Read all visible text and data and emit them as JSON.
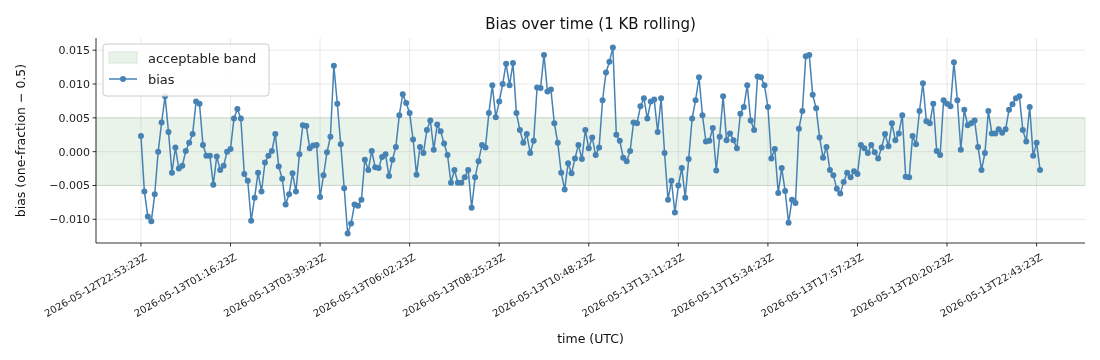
{
  "chart_data": {
    "type": "line",
    "title": "Bias over time (1 KB rolling)",
    "xlabel": "time (UTC)",
    "ylabel": "bias (one-fraction − 0.5)",
    "xlim": [
      "2026-05-12T21:41:37",
      "2026-05-14T00:00:39"
    ],
    "ylim": [
      -0.0135,
      0.0168
    ],
    "xticks": [
      {
        "value": "2026-05-12T22:53:23",
        "label": "2026-05-12T22:53:23Z"
      },
      {
        "value": "2026-05-13T01:16:23",
        "label": "2026-05-13T01:16:23Z"
      },
      {
        "value": "2026-05-13T03:39:23",
        "label": "2026-05-13T03:39:23Z"
      },
      {
        "value": "2026-05-13T06:02:23",
        "label": "2026-05-13T06:02:23Z"
      },
      {
        "value": "2026-05-13T08:25:23",
        "label": "2026-05-13T08:25:23Z"
      },
      {
        "value": "2026-05-13T10:48:23",
        "label": "2026-05-13T10:48:23Z"
      },
      {
        "value": "2026-05-13T13:11:23",
        "label": "2026-05-13T13:11:23Z"
      },
      {
        "value": "2026-05-13T15:34:23",
        "label": "2026-05-13T15:34:23Z"
      },
      {
        "value": "2026-05-13T17:57:23",
        "label": "2026-05-13T17:57:23Z"
      },
      {
        "value": "2026-05-13T20:20:23",
        "label": "2026-05-13T20:20:23Z"
      },
      {
        "value": "2026-05-13T22:43:23",
        "label": "2026-05-13T22:43:23Z"
      }
    ],
    "yticks": [
      {
        "value": -0.01,
        "label": "−0.010"
      },
      {
        "value": -0.005,
        "label": "−0.005"
      },
      {
        "value": 0,
        "label": "0.000"
      },
      {
        "value": 0.005,
        "label": "0.005"
      },
      {
        "value": 0.01,
        "label": "0.010"
      },
      {
        "value": 0.015,
        "label": "0.015"
      }
    ],
    "grid": true,
    "legend": "top left",
    "marker": "circle",
    "bands": [
      {
        "axis": "y",
        "from": -0.005,
        "to": 0.005,
        "label": "acceptable band",
        "color": "#e9f3e9"
      }
    ],
    "series": [
      {
        "name": "bias",
        "color": "#4682b4",
        "x": [
          "2026-05-12T22:53:23",
          "2026-05-12T22:58:53",
          "2026-05-12T23:04:23",
          "2026-05-12T23:09:53",
          "2026-05-12T23:15:23",
          "2026-05-12T23:20:53",
          "2026-05-12T23:26:23",
          "2026-05-12T23:31:53",
          "2026-05-12T23:37:23",
          "2026-05-12T23:42:53",
          "2026-05-12T23:48:23",
          "2026-05-12T23:53:53",
          "2026-05-12T23:59:23",
          "2026-05-13T00:04:53",
          "2026-05-13T00:10:23",
          "2026-05-13T00:15:53",
          "2026-05-13T00:21:23",
          "2026-05-13T00:26:53",
          "2026-05-13T00:32:23",
          "2026-05-13T00:37:53",
          "2026-05-13T00:43:23",
          "2026-05-13T00:48:53",
          "2026-05-13T00:54:23",
          "2026-05-13T00:59:53",
          "2026-05-13T01:05:23",
          "2026-05-13T01:10:53",
          "2026-05-13T01:16:23",
          "2026-05-13T01:21:53",
          "2026-05-13T01:27:23",
          "2026-05-13T01:32:53",
          "2026-05-13T01:38:23",
          "2026-05-13T01:43:53",
          "2026-05-13T01:49:23",
          "2026-05-13T01:54:53",
          "2026-05-13T02:00:23",
          "2026-05-13T02:05:53",
          "2026-05-13T02:11:23",
          "2026-05-13T02:16:53",
          "2026-05-13T02:22:23",
          "2026-05-13T02:27:53",
          "2026-05-13T02:33:23",
          "2026-05-13T02:38:53",
          "2026-05-13T02:44:23",
          "2026-05-13T02:49:53",
          "2026-05-13T02:55:23",
          "2026-05-13T03:00:53",
          "2026-05-13T03:06:23",
          "2026-05-13T03:11:53",
          "2026-05-13T03:17:23",
          "2026-05-13T03:22:53",
          "2026-05-13T03:28:23",
          "2026-05-13T03:33:53",
          "2026-05-13T03:39:23",
          "2026-05-13T03:44:53",
          "2026-05-13T03:50:23",
          "2026-05-13T03:55:53",
          "2026-05-13T04:01:23",
          "2026-05-13T04:06:53",
          "2026-05-13T04:12:23",
          "2026-05-13T04:17:53",
          "2026-05-13T04:23:23",
          "2026-05-13T04:28:53",
          "2026-05-13T04:34:23",
          "2026-05-13T04:39:53",
          "2026-05-13T04:45:23",
          "2026-05-13T04:50:53",
          "2026-05-13T04:56:23",
          "2026-05-13T05:01:53",
          "2026-05-13T05:07:23",
          "2026-05-13T05:12:53",
          "2026-05-13T05:18:23",
          "2026-05-13T05:23:53",
          "2026-05-13T05:29:23",
          "2026-05-13T05:34:53",
          "2026-05-13T05:40:23",
          "2026-05-13T05:45:53",
          "2026-05-13T05:51:23",
          "2026-05-13T05:56:53",
          "2026-05-13T06:02:23",
          "2026-05-13T06:07:53",
          "2026-05-13T06:13:23",
          "2026-05-13T06:18:53",
          "2026-05-13T06:24:23",
          "2026-05-13T06:29:53",
          "2026-05-13T06:35:23",
          "2026-05-13T06:40:53",
          "2026-05-13T06:46:23",
          "2026-05-13T06:51:53",
          "2026-05-13T06:57:23",
          "2026-05-13T07:02:53",
          "2026-05-13T07:08:23",
          "2026-05-13T07:13:53",
          "2026-05-13T07:19:23",
          "2026-05-13T07:24:53",
          "2026-05-13T07:30:23",
          "2026-05-13T07:35:53",
          "2026-05-13T07:41:23",
          "2026-05-13T07:46:53",
          "2026-05-13T07:52:23",
          "2026-05-13T07:57:53",
          "2026-05-13T08:03:23",
          "2026-05-13T08:08:53",
          "2026-05-13T08:14:23",
          "2026-05-13T08:19:53",
          "2026-05-13T08:25:23",
          "2026-05-13T08:30:53",
          "2026-05-13T08:36:23",
          "2026-05-13T08:41:53",
          "2026-05-13T08:47:23",
          "2026-05-13T08:52:53",
          "2026-05-13T08:58:23",
          "2026-05-13T09:03:53",
          "2026-05-13T09:09:23",
          "2026-05-13T09:14:53",
          "2026-05-13T09:20:23",
          "2026-05-13T09:25:53",
          "2026-05-13T09:31:23",
          "2026-05-13T09:36:53",
          "2026-05-13T09:42:23",
          "2026-05-13T09:47:53",
          "2026-05-13T09:53:23",
          "2026-05-13T09:58:53",
          "2026-05-13T10:04:23",
          "2026-05-13T10:09:53",
          "2026-05-13T10:15:23",
          "2026-05-13T10:20:53",
          "2026-05-13T10:26:23",
          "2026-05-13T10:31:53",
          "2026-05-13T10:37:23",
          "2026-05-13T10:42:53",
          "2026-05-13T10:48:23",
          "2026-05-13T10:53:53",
          "2026-05-13T10:59:23",
          "2026-05-13T11:04:53",
          "2026-05-13T11:10:23",
          "2026-05-13T11:15:53",
          "2026-05-13T11:21:23",
          "2026-05-13T11:26:53",
          "2026-05-13T11:32:23",
          "2026-05-13T11:37:53",
          "2026-05-13T11:43:23",
          "2026-05-13T11:48:53",
          "2026-05-13T11:54:23",
          "2026-05-13T11:59:53",
          "2026-05-13T12:05:23",
          "2026-05-13T12:10:53",
          "2026-05-13T12:16:23",
          "2026-05-13T12:21:53",
          "2026-05-13T12:27:23",
          "2026-05-13T12:32:53",
          "2026-05-13T12:38:23",
          "2026-05-13T12:43:53",
          "2026-05-13T12:49:23",
          "2026-05-13T12:54:53",
          "2026-05-13T13:00:23",
          "2026-05-13T13:05:53",
          "2026-05-13T13:11:23",
          "2026-05-13T13:16:53",
          "2026-05-13T13:22:23",
          "2026-05-13T13:27:53",
          "2026-05-13T13:33:23",
          "2026-05-13T13:38:53",
          "2026-05-13T13:44:23",
          "2026-05-13T13:49:53",
          "2026-05-13T13:55:23",
          "2026-05-13T14:00:53",
          "2026-05-13T14:06:23",
          "2026-05-13T14:11:53",
          "2026-05-13T14:17:23",
          "2026-05-13T14:22:53",
          "2026-05-13T14:28:23",
          "2026-05-13T14:33:53",
          "2026-05-13T14:39:23",
          "2026-05-13T14:44:53",
          "2026-05-13T14:50:23",
          "2026-05-13T14:55:53",
          "2026-05-13T15:01:23",
          "2026-05-13T15:06:53",
          "2026-05-13T15:12:23",
          "2026-05-13T15:17:53",
          "2026-05-13T15:23:23",
          "2026-05-13T15:28:53",
          "2026-05-13T15:34:23",
          "2026-05-13T15:39:53",
          "2026-05-13T15:45:23",
          "2026-05-13T15:50:53",
          "2026-05-13T15:56:23",
          "2026-05-13T16:01:53",
          "2026-05-13T16:07:23",
          "2026-05-13T16:12:53",
          "2026-05-13T16:18:23",
          "2026-05-13T16:23:53",
          "2026-05-13T16:29:23",
          "2026-05-13T16:34:53",
          "2026-05-13T16:40:23",
          "2026-05-13T16:45:53",
          "2026-05-13T16:51:23",
          "2026-05-13T16:56:53",
          "2026-05-13T17:02:23",
          "2026-05-13T17:07:53",
          "2026-05-13T17:13:23",
          "2026-05-13T17:18:53",
          "2026-05-13T17:24:23",
          "2026-05-13T17:29:53",
          "2026-05-13T17:35:23",
          "2026-05-13T17:40:53",
          "2026-05-13T17:46:23",
          "2026-05-13T17:51:53",
          "2026-05-13T17:57:23",
          "2026-05-13T18:02:53",
          "2026-05-13T18:08:23",
          "2026-05-13T18:13:53",
          "2026-05-13T18:19:23",
          "2026-05-13T18:24:53",
          "2026-05-13T18:30:23",
          "2026-05-13T18:35:53",
          "2026-05-13T18:41:23",
          "2026-05-13T18:46:53",
          "2026-05-13T18:52:23",
          "2026-05-13T18:57:53",
          "2026-05-13T19:03:23",
          "2026-05-13T19:08:53",
          "2026-05-13T19:14:23",
          "2026-05-13T19:19:53",
          "2026-05-13T19:25:23",
          "2026-05-13T19:30:53",
          "2026-05-13T19:36:23",
          "2026-05-13T19:41:53",
          "2026-05-13T19:47:23",
          "2026-05-13T19:52:53",
          "2026-05-13T19:58:23",
          "2026-05-13T20:03:53",
          "2026-05-13T20:09:23",
          "2026-05-13T20:14:53",
          "2026-05-13T20:20:23",
          "2026-05-13T20:25:53",
          "2026-05-13T20:31:23",
          "2026-05-13T20:36:53",
          "2026-05-13T20:42:23",
          "2026-05-13T20:47:53",
          "2026-05-13T20:53:23",
          "2026-05-13T20:58:53",
          "2026-05-13T21:04:23",
          "2026-05-13T21:09:53",
          "2026-05-13T21:15:23",
          "2026-05-13T21:20:53",
          "2026-05-13T21:26:23",
          "2026-05-13T21:31:53",
          "2026-05-13T21:37:23",
          "2026-05-13T21:42:53",
          "2026-05-13T21:48:23",
          "2026-05-13T21:53:53",
          "2026-05-13T21:59:23",
          "2026-05-13T22:04:53",
          "2026-05-13T22:10:23",
          "2026-05-13T22:15:53",
          "2026-05-13T22:21:23",
          "2026-05-13T22:26:53",
          "2026-05-13T22:32:23",
          "2026-05-13T22:37:53",
          "2026-05-13T22:43:23",
          "2026-05-13T22:48:53"
        ],
        "values": [
          0.0023,
          -0.0059,
          -0.0096,
          -0.0103,
          -0.0063,
          0.0,
          0.0043,
          0.0082,
          0.0029,
          -0.0031,
          0.0006,
          -0.0025,
          -0.0021,
          0.0001,
          0.0013,
          0.0026,
          0.0074,
          0.0071,
          0.001,
          -0.0006,
          -0.0006,
          -0.0049,
          -0.0007,
          -0.0027,
          -0.0021,
          0.0,
          0.0004,
          0.0049,
          0.0063,
          0.0049,
          -0.0033,
          -0.0043,
          -0.0102,
          -0.0068,
          -0.0031,
          -0.0059,
          -0.0016,
          -0.0006,
          0.0001,
          0.0026,
          -0.0022,
          -0.004,
          -0.0078,
          -0.0063,
          -0.0032,
          -0.0059,
          -0.0004,
          0.0039,
          0.0038,
          0.0005,
          0.0009,
          0.001,
          -0.0067,
          -0.0035,
          -0.0001,
          0.0022,
          0.0127,
          0.0071,
          0.0011,
          -0.0054,
          -0.0121,
          -0.0106,
          -0.0078,
          -0.008,
          -0.0071,
          -0.0012,
          -0.0027,
          0.0001,
          -0.0023,
          -0.0024,
          -0.0008,
          -0.0004,
          -0.0036,
          -0.0012,
          0.0007,
          0.0054,
          0.0085,
          0.0072,
          0.0057,
          0.0018,
          -0.0034,
          0.0007,
          -0.0002,
          0.0032,
          0.0046,
          0.0003,
          0.004,
          0.003,
          0.0012,
          -0.0005,
          -0.0046,
          -0.0027,
          -0.0046,
          -0.0046,
          -0.0038,
          -0.0027,
          -0.0083,
          -0.0038,
          -0.0014,
          0.001,
          0.0006,
          0.0057,
          0.0098,
          0.0051,
          0.0074,
          0.01,
          0.013,
          0.0098,
          0.0131,
          0.0057,
          0.0032,
          0.0013,
          0.0026,
          -0.0002,
          0.0016,
          0.0095,
          0.0094,
          0.0143,
          0.0089,
          0.0092,
          0.0042,
          0.0013,
          -0.0031,
          -0.0056,
          -0.0017,
          -0.0032,
          -0.001,
          0.001,
          -0.0011,
          0.0032,
          0.0005,
          0.0021,
          -0.0005,
          0.0006,
          0.0076,
          0.0117,
          0.0133,
          0.0154,
          0.0025,
          0.0016,
          -0.0009,
          -0.0014,
          0.0001,
          0.0043,
          0.0042,
          0.0067,
          0.0079,
          0.0049,
          0.0074,
          0.0077,
          0.0029,
          0.0079,
          -0.0002,
          -0.0071,
          -0.0043,
          -0.009,
          -0.005,
          -0.0024,
          -0.0068,
          -0.0011,
          0.0049,
          0.0076,
          0.011,
          0.0054,
          0.0015,
          0.0016,
          0.0035,
          -0.0028,
          0.0022,
          0.0082,
          0.0017,
          0.0027,
          0.0017,
          0.0005,
          0.0056,
          0.0066,
          0.0098,
          0.0046,
          0.0032,
          0.0111,
          0.011,
          0.0098,
          0.0066,
          -0.001,
          0.0004,
          -0.0061,
          -0.0024,
          -0.0058,
          -0.0105,
          -0.0071,
          -0.0076,
          0.0034,
          0.006,
          0.0141,
          0.0143,
          0.0084,
          0.0064,
          0.0021,
          -0.0009,
          0.0007,
          -0.0027,
          -0.0035,
          -0.0055,
          -0.0062,
          -0.0045,
          -0.0031,
          -0.0038,
          -0.0029,
          -0.0033,
          0.001,
          0.0005,
          -0.0002,
          0.001,
          -0.0001,
          -0.001,
          0.0006,
          0.0026,
          0.0008,
          0.0042,
          0.0017,
          0.0027,
          0.0054,
          -0.0037,
          -0.0038,
          0.0023,
          0.0011,
          0.006,
          0.0101,
          0.0045,
          0.0042,
          0.0071,
          0.0001,
          -0.0005,
          0.0076,
          0.0071,
          0.0067,
          0.0132,
          0.0076,
          0.0003,
          0.0062,
          0.0039,
          0.0042,
          0.0046,
          0.0007,
          -0.0027,
          -0.0002,
          0.006,
          0.0027,
          0.0027,
          0.0033,
          0.0028,
          0.0033,
          0.0062,
          0.007,
          0.0079,
          0.0082,
          0.0032,
          0.0015,
          0.0066,
          -0.0006,
          0.0013,
          -0.0027
        ]
      }
    ]
  }
}
